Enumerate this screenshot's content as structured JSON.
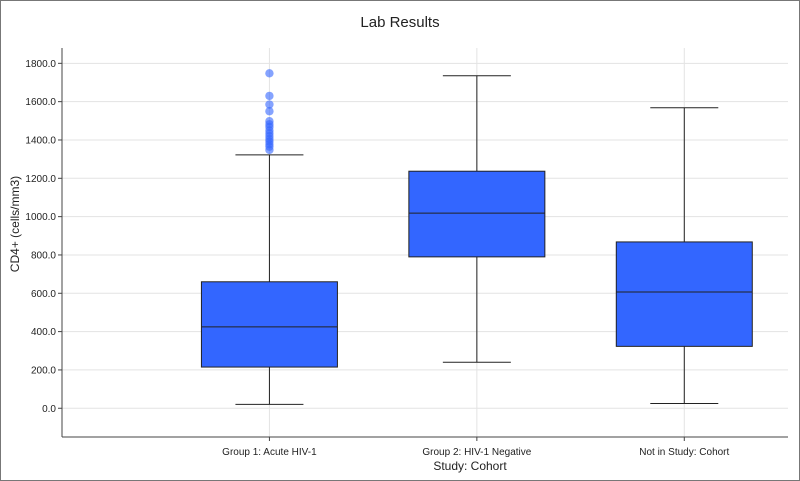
{
  "chart_data": {
    "type": "boxplot",
    "title": "Lab Results",
    "xlabel": "Study: Cohort",
    "ylabel": "CD4+ (cells/mm3)",
    "ylim": [
      -150,
      1880
    ],
    "yticks": [
      0,
      200,
      400,
      600,
      800,
      1000,
      1200,
      1400,
      1600,
      1800
    ],
    "ytick_labels": [
      "0.0",
      "200.0",
      "400.0",
      "600.0",
      "800.0",
      "1000.0",
      "1200.0",
      "1400.0",
      "1600.0",
      "1800.0"
    ],
    "grid": true,
    "box_color": "#3366ff",
    "outlier_color": "#3366ff",
    "categories": [
      "Group 1: Acute HIV-1",
      "Group 2: HIV-1 Negative",
      "Not in Study: Cohort"
    ],
    "boxes": [
      {
        "min": 20,
        "q1": 215,
        "median": 425,
        "q3": 660,
        "max": 1322,
        "outliers": [
          1348,
          1365,
          1378,
          1392,
          1405,
          1420,
          1435,
          1450,
          1468,
          1482,
          1498,
          1550,
          1585,
          1630,
          1748
        ]
      },
      {
        "min": 240,
        "q1": 790,
        "median": 1018,
        "q3": 1237,
        "max": 1735,
        "outliers": []
      },
      {
        "min": 25,
        "q1": 323,
        "median": 607,
        "q3": 868,
        "max": 1568,
        "outliers": []
      }
    ]
  }
}
